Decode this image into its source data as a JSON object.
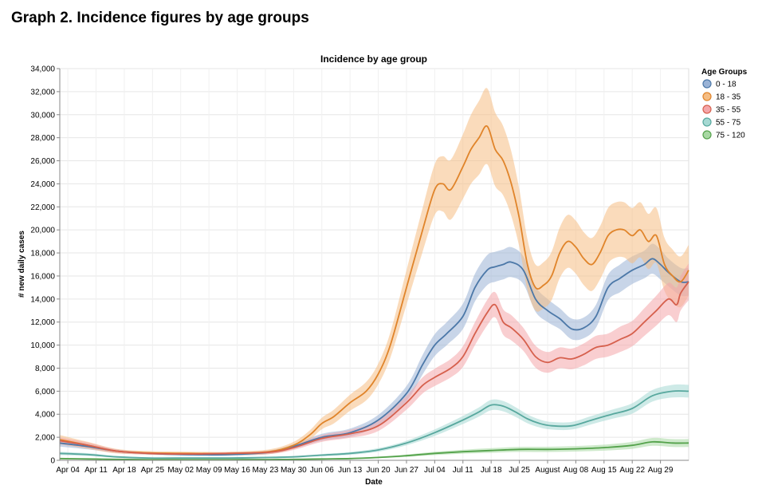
{
  "page_title": "Graph 2. Incidence figures by age groups",
  "chart_data": {
    "type": "line",
    "title": "Incidence by age group",
    "xlabel": "Date",
    "ylabel": "# new daily cases",
    "ylim": [
      0,
      34000
    ],
    "x_range_days": [
      -2,
      154
    ],
    "y_ticks": [
      0,
      2000,
      4000,
      6000,
      8000,
      10000,
      12000,
      14000,
      16000,
      18000,
      20000,
      22000,
      24000,
      26000,
      28000,
      30000,
      32000,
      34000
    ],
    "y_tick_labels": [
      "0",
      "2,000",
      "4,000",
      "6,000",
      "8,000",
      "10,000",
      "12,000",
      "14,000",
      "16,000",
      "18,000",
      "20,000",
      "22,000",
      "24,000",
      "26,000",
      "28,000",
      "30,000",
      "32,000",
      "34,000"
    ],
    "x_ticks": [
      {
        "day": 0,
        "label": "Apr 04"
      },
      {
        "day": 7,
        "label": "Apr 11"
      },
      {
        "day": 14,
        "label": "Apr 18"
      },
      {
        "day": 21,
        "label": "Apr 25"
      },
      {
        "day": 28,
        "label": "May 02"
      },
      {
        "day": 35,
        "label": "May 09"
      },
      {
        "day": 42,
        "label": "May 16"
      },
      {
        "day": 49,
        "label": "May 23"
      },
      {
        "day": 56,
        "label": "May 30"
      },
      {
        "day": 63,
        "label": "Jun 06"
      },
      {
        "day": 70,
        "label": "Jun 13"
      },
      {
        "day": 77,
        "label": "Jun 20"
      },
      {
        "day": 84,
        "label": "Jun 27"
      },
      {
        "day": 91,
        "label": "Jul 04"
      },
      {
        "day": 98,
        "label": "Jul 11"
      },
      {
        "day": 105,
        "label": "Jul 18"
      },
      {
        "day": 112,
        "label": "Jul 25"
      },
      {
        "day": 119,
        "label": "August"
      },
      {
        "day": 126,
        "label": "Aug 08"
      },
      {
        "day": 133,
        "label": "Aug 15"
      },
      {
        "day": 140,
        "label": "Aug 22"
      },
      {
        "day": 147,
        "label": "Aug 29"
      }
    ],
    "legend": {
      "title": "Age Groups",
      "position": "right"
    },
    "series": [
      {
        "name": "0 - 18",
        "line_color": "#4c78a8",
        "band_color": "#9ab3d6",
        "x": [
          -2,
          5,
          12,
          20,
          30,
          40,
          50,
          56,
          63,
          70,
          77,
          84,
          88,
          91,
          94,
          98,
          101,
          104,
          106,
          108,
          110,
          113,
          116,
          119,
          122,
          125,
          128,
          131,
          134,
          137,
          140,
          143,
          145,
          147,
          149,
          152,
          154
        ],
        "y": [
          1500,
          1200,
          800,
          600,
          500,
          500,
          700,
          1200,
          2000,
          2400,
          3500,
          5800,
          8300,
          10000,
          11000,
          12500,
          15000,
          16500,
          16800,
          17000,
          17200,
          16500,
          14000,
          13000,
          12300,
          11400,
          11500,
          12500,
          15000,
          15800,
          16500,
          17000,
          17500,
          17000,
          16300,
          15500,
          15500
        ],
        "band_halfwidth": [
          300,
          250,
          150,
          100,
          100,
          100,
          150,
          200,
          300,
          350,
          450,
          650,
          850,
          950,
          1000,
          1100,
          1200,
          1300,
          1300,
          1300,
          1300,
          1200,
          1100,
          1000,
          900,
          900,
          900,
          1000,
          1100,
          1200,
          1200,
          1200,
          1300,
          1300,
          1200,
          1200,
          1200
        ]
      },
      {
        "name": "18 - 35",
        "line_color": "#e0842a",
        "band_color": "#f5bd83",
        "x": [
          -2,
          5,
          12,
          20,
          30,
          40,
          50,
          56,
          60,
          63,
          66,
          70,
          74,
          77,
          80,
          84,
          88,
          91,
          93,
          95,
          98,
          100,
          102,
          104,
          106,
          108,
          110,
          112,
          114,
          116,
          118,
          120,
          122,
          124,
          126,
          128,
          130,
          132,
          134,
          136,
          138,
          140,
          142,
          144,
          146,
          148,
          150,
          152,
          154
        ],
        "y": [
          1800,
          1300,
          800,
          650,
          600,
          600,
          750,
          1300,
          2200,
          3200,
          3800,
          5000,
          6000,
          7500,
          10000,
          15000,
          20000,
          23500,
          24000,
          23500,
          25500,
          27000,
          28000,
          29000,
          27000,
          26000,
          24000,
          21000,
          17000,
          15000,
          15200,
          16000,
          18000,
          19000,
          18500,
          17500,
          17000,
          18000,
          19500,
          20000,
          20000,
          19500,
          20000,
          19000,
          19500,
          17000,
          16000,
          15500,
          16500
        ],
        "band_halfwidth": [
          400,
          300,
          200,
          150,
          150,
          150,
          200,
          300,
          400,
          500,
          600,
          700,
          800,
          900,
          1100,
          1500,
          1900,
          2200,
          2400,
          2600,
          2800,
          3000,
          3200,
          3300,
          3200,
          3000,
          2800,
          2500,
          2200,
          2000,
          2000,
          2100,
          2200,
          2300,
          2300,
          2300,
          2300,
          2300,
          2400,
          2400,
          2400,
          2400,
          2400,
          2400,
          2400,
          2300,
          2300,
          2200,
          2200
        ]
      },
      {
        "name": "35 - 55",
        "line_color": "#d6604d",
        "band_color": "#f4a6a9",
        "x": [
          -2,
          5,
          12,
          20,
          30,
          40,
          50,
          56,
          63,
          70,
          77,
          84,
          88,
          91,
          95,
          98,
          101,
          104,
          106,
          108,
          110,
          113,
          116,
          119,
          122,
          125,
          128,
          131,
          134,
          137,
          140,
          143,
          146,
          149,
          151,
          152,
          154
        ],
        "y": [
          1700,
          1300,
          800,
          600,
          550,
          600,
          700,
          1100,
          1900,
          2300,
          3000,
          5000,
          6500,
          7200,
          8000,
          9000,
          11000,
          12800,
          13500,
          12000,
          11500,
          10500,
          9000,
          8500,
          8900,
          8800,
          9200,
          9800,
          10000,
          10500,
          11000,
          12000,
          13000,
          14000,
          13500,
          14500,
          15500
        ],
        "band_halfwidth": [
          300,
          250,
          150,
          100,
          100,
          100,
          150,
          200,
          300,
          350,
          450,
          600,
          700,
          750,
          800,
          900,
          1000,
          1100,
          1100,
          1100,
          1100,
          1000,
          950,
          900,
          900,
          900,
          950,
          1000,
          1000,
          1100,
          1100,
          1200,
          1300,
          1400,
          1500,
          1500,
          1600
        ]
      },
      {
        "name": "55 - 75",
        "line_color": "#58a89e",
        "band_color": "#a6d9d3",
        "x": [
          -2,
          5,
          12,
          20,
          30,
          40,
          50,
          56,
          63,
          70,
          77,
          84,
          91,
          98,
          102,
          105,
          108,
          111,
          114,
          117,
          120,
          125,
          130,
          135,
          140,
          145,
          150,
          154
        ],
        "y": [
          600,
          500,
          300,
          200,
          200,
          200,
          250,
          300,
          450,
          600,
          900,
          1500,
          2400,
          3500,
          4200,
          4800,
          4700,
          4200,
          3600,
          3200,
          3000,
          3000,
          3500,
          4000,
          4500,
          5600,
          6000,
          6000
        ],
        "band_halfwidth": [
          150,
          120,
          80,
          60,
          60,
          60,
          70,
          80,
          100,
          120,
          150,
          200,
          280,
          350,
          400,
          450,
          450,
          420,
          380,
          350,
          330,
          330,
          360,
          400,
          450,
          500,
          550,
          550
        ]
      },
      {
        "name": "75 - 120",
        "line_color": "#54a24b",
        "band_color": "#a8d8a3",
        "x": [
          -2,
          5,
          12,
          20,
          30,
          40,
          50,
          56,
          63,
          70,
          77,
          84,
          91,
          98,
          105,
          112,
          119,
          126,
          133,
          140,
          145,
          150,
          154
        ],
        "y": [
          150,
          120,
          80,
          60,
          60,
          60,
          70,
          80,
          120,
          150,
          250,
          400,
          600,
          750,
          850,
          950,
          950,
          1000,
          1100,
          1300,
          1600,
          1500,
          1500
        ],
        "band_halfwidth": [
          50,
          40,
          30,
          20,
          20,
          20,
          25,
          30,
          40,
          50,
          70,
          100,
          140,
          170,
          200,
          220,
          230,
          240,
          260,
          300,
          340,
          340,
          340
        ]
      }
    ]
  }
}
